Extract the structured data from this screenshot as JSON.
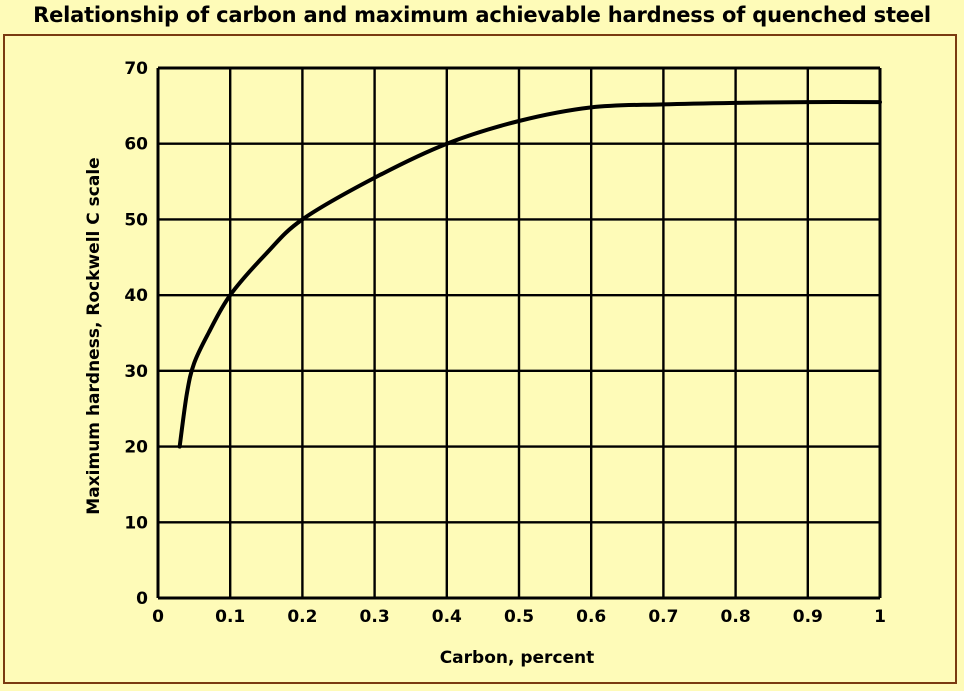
{
  "chart_data": {
    "type": "line",
    "title": "Relationship of carbon and maximum achievable hardness of quenched steel",
    "xlabel": "Carbon, percent",
    "ylabel": "Maximum hardness, Rockwell C scale",
    "xlim": [
      0,
      1
    ],
    "ylim": [
      0,
      70
    ],
    "x_ticks": [
      "0",
      "0.1",
      "0.2",
      "0.3",
      "0.4",
      "0.5",
      "0.6",
      "0.7",
      "0.8",
      "0.9",
      "1"
    ],
    "y_ticks": [
      "0",
      "10",
      "20",
      "30",
      "40",
      "50",
      "60",
      "70"
    ],
    "grid": true,
    "series": [
      {
        "x": [
          0.03,
          0.04,
          0.05,
          0.07,
          0.1,
          0.15,
          0.2,
          0.3,
          0.4,
          0.5,
          0.6,
          0.7,
          0.8,
          0.9,
          1.0
        ],
        "y": [
          20,
          27,
          31,
          35,
          40,
          45.5,
          50,
          55.5,
          60,
          63,
          64.8,
          65.2,
          65.4,
          65.5,
          65.5
        ]
      }
    ],
    "colors": {
      "background": "#fefbb8",
      "line": "#000000",
      "frame": "#7a3b10"
    }
  }
}
